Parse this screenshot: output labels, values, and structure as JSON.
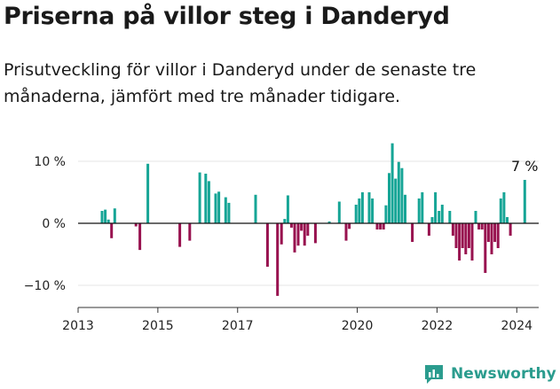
{
  "title": "Priserna på villor steg i Danderyd",
  "subtitle": "Prisutveckling för villor i Danderyd under de senaste tre månaderna, jämfört med tre månader tidigare.",
  "brand": "Newsworthy",
  "colors": {
    "positive": "#16a596",
    "negative": "#98124f",
    "grid": "#e5e5e5",
    "zero": "#111111",
    "brand": "#2b9c8e"
  },
  "chart_data": {
    "type": "bar",
    "title": "Priserna på villor steg i Danderyd",
    "xlabel": "",
    "ylabel": "",
    "ylim": [
      -14,
      14
    ],
    "xlim": [
      2013.0,
      2024.55
    ],
    "yticks": [
      {
        "value": 10,
        "label": "10 %"
      },
      {
        "value": 0,
        "label": "0 %"
      },
      {
        "value": -10,
        "label": "−10 %"
      }
    ],
    "xticks": [
      2013,
      2015,
      2017,
      2020,
      2022,
      2024
    ],
    "annotation": {
      "text": "7 %",
      "x": 2024.2,
      "y": 7
    },
    "series": [
      {
        "name": "",
        "points": [
          {
            "x": 2013.6,
            "y": 2
          },
          {
            "x": 2013.68,
            "y": 2.2
          },
          {
            "x": 2013.76,
            "y": 0.6
          },
          {
            "x": 2013.84,
            "y": -2.4
          },
          {
            "x": 2013.92,
            "y": 2.4
          },
          {
            "x": 2014.45,
            "y": -0.5
          },
          {
            "x": 2014.55,
            "y": -4.3
          },
          {
            "x": 2014.75,
            "y": 9.6
          },
          {
            "x": 2015.55,
            "y": -3.8
          },
          {
            "x": 2015.8,
            "y": -2.8
          },
          {
            "x": 2016.05,
            "y": 8.2
          },
          {
            "x": 2016.2,
            "y": 8
          },
          {
            "x": 2016.28,
            "y": 6.8
          },
          {
            "x": 2016.45,
            "y": 4.8
          },
          {
            "x": 2016.53,
            "y": 5.1
          },
          {
            "x": 2016.7,
            "y": 4.2
          },
          {
            "x": 2016.78,
            "y": 3.3
          },
          {
            "x": 2017.45,
            "y": 4.6
          },
          {
            "x": 2017.75,
            "y": -7
          },
          {
            "x": 2018.0,
            "y": -11.7
          },
          {
            "x": 2018.1,
            "y": -3.4
          },
          {
            "x": 2018.18,
            "y": 0.7
          },
          {
            "x": 2018.26,
            "y": 4.5
          },
          {
            "x": 2018.35,
            "y": -0.7
          },
          {
            "x": 2018.43,
            "y": -4.7
          },
          {
            "x": 2018.52,
            "y": -3.6
          },
          {
            "x": 2018.6,
            "y": -1.2
          },
          {
            "x": 2018.68,
            "y": -3.6
          },
          {
            "x": 2018.76,
            "y": -2
          },
          {
            "x": 2018.95,
            "y": -3.2
          },
          {
            "x": 2019.3,
            "y": 0.3
          },
          {
            "x": 2019.55,
            "y": 3.5
          },
          {
            "x": 2019.72,
            "y": -2.8
          },
          {
            "x": 2019.8,
            "y": -0.9
          },
          {
            "x": 2019.97,
            "y": 3
          },
          {
            "x": 2020.05,
            "y": 4
          },
          {
            "x": 2020.13,
            "y": 5
          },
          {
            "x": 2020.3,
            "y": 5
          },
          {
            "x": 2020.38,
            "y": 4
          },
          {
            "x": 2020.5,
            "y": -1
          },
          {
            "x": 2020.58,
            "y": -1
          },
          {
            "x": 2020.66,
            "y": -1
          },
          {
            "x": 2020.72,
            "y": 2.9
          },
          {
            "x": 2020.8,
            "y": 8.1
          },
          {
            "x": 2020.88,
            "y": 12.9
          },
          {
            "x": 2020.96,
            "y": 7.2
          },
          {
            "x": 2021.04,
            "y": 9.9
          },
          {
            "x": 2021.12,
            "y": 8.9
          },
          {
            "x": 2021.2,
            "y": 4.6
          },
          {
            "x": 2021.38,
            "y": -3
          },
          {
            "x": 2021.55,
            "y": 4
          },
          {
            "x": 2021.63,
            "y": 5
          },
          {
            "x": 2021.8,
            "y": -2
          },
          {
            "x": 2021.88,
            "y": 1
          },
          {
            "x": 2021.96,
            "y": 5
          },
          {
            "x": 2022.05,
            "y": 2
          },
          {
            "x": 2022.13,
            "y": 3
          },
          {
            "x": 2022.32,
            "y": 2
          },
          {
            "x": 2022.4,
            "y": -2
          },
          {
            "x": 2022.48,
            "y": -4
          },
          {
            "x": 2022.56,
            "y": -6
          },
          {
            "x": 2022.64,
            "y": -4
          },
          {
            "x": 2022.72,
            "y": -5
          },
          {
            "x": 2022.8,
            "y": -4
          },
          {
            "x": 2022.88,
            "y": -6
          },
          {
            "x": 2022.97,
            "y": 2
          },
          {
            "x": 2023.05,
            "y": -1
          },
          {
            "x": 2023.13,
            "y": -1
          },
          {
            "x": 2023.21,
            "y": -8
          },
          {
            "x": 2023.29,
            "y": -3
          },
          {
            "x": 2023.37,
            "y": -5
          },
          {
            "x": 2023.45,
            "y": -3
          },
          {
            "x": 2023.53,
            "y": -4
          },
          {
            "x": 2023.6,
            "y": 4
          },
          {
            "x": 2023.68,
            "y": 5
          },
          {
            "x": 2023.76,
            "y": 1
          },
          {
            "x": 2023.84,
            "y": -2
          },
          {
            "x": 2024.2,
            "y": 7
          }
        ]
      }
    ]
  }
}
